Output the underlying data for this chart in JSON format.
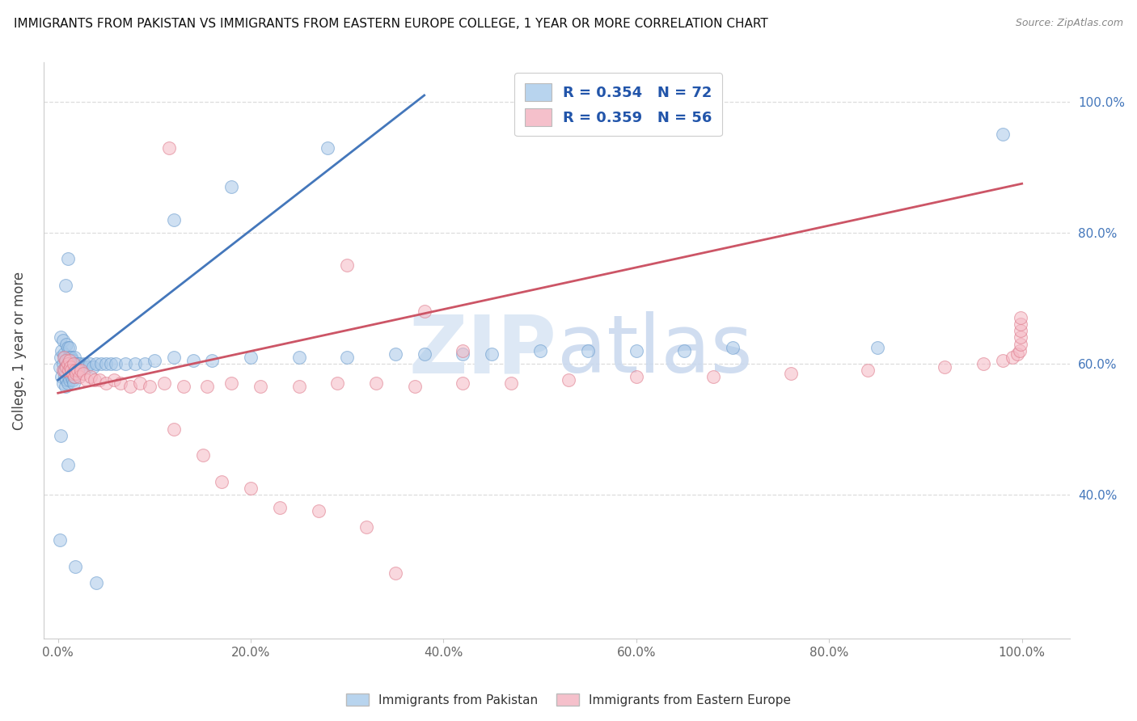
{
  "title": "IMMIGRANTS FROM PAKISTAN VS IMMIGRANTS FROM EASTERN EUROPE COLLEGE, 1 YEAR OR MORE CORRELATION CHART",
  "source": "Source: ZipAtlas.com",
  "ylabel": "College, 1 year or more",
  "blue_color": "#a8c8e8",
  "blue_edge_color": "#6699cc",
  "blue_line_color": "#4477bb",
  "pink_color": "#f5b8c4",
  "pink_edge_color": "#dd7788",
  "pink_line_color": "#cc5566",
  "legend_blue_face": "#b8d4ee",
  "legend_pink_face": "#f5c0cb",
  "watermark_color": "#dde8f5",
  "background_color": "#ffffff",
  "grid_color": "#dddddd",
  "right_tick_color": "#4477bb",
  "blue_label": "R = 0.354   N = 72",
  "pink_label": "R = 0.359   N = 56",
  "blue_line_x": [
    0.0,
    0.38
  ],
  "blue_line_y": [
    0.575,
    1.01
  ],
  "pink_line_x": [
    0.0,
    1.0
  ],
  "pink_line_y": [
    0.555,
    0.875
  ],
  "xlim": [
    -0.015,
    1.05
  ],
  "ylim": [
    0.18,
    1.06
  ],
  "yticks": [
    0.4,
    0.6,
    0.8,
    1.0
  ],
  "ytick_labels_right": [
    "40.0%",
    "60.0%",
    "80.0%",
    "100.0%"
  ],
  "xticks": [
    0.0,
    0.2,
    0.4,
    0.6,
    0.8,
    1.0
  ],
  "xtick_labels": [
    "0.0%",
    "20.0%",
    "40.0%",
    "60.0%",
    "80.0%",
    "100.0%"
  ],
  "blue_x": [
    0.002,
    0.003,
    0.003,
    0.004,
    0.004,
    0.005,
    0.005,
    0.005,
    0.006,
    0.006,
    0.007,
    0.007,
    0.008,
    0.008,
    0.009,
    0.009,
    0.009,
    0.01,
    0.01,
    0.01,
    0.011,
    0.011,
    0.012,
    0.012,
    0.012,
    0.013,
    0.013,
    0.014,
    0.014,
    0.015,
    0.015,
    0.016,
    0.016,
    0.017,
    0.017,
    0.018,
    0.019,
    0.02,
    0.021,
    0.022,
    0.023,
    0.025,
    0.027,
    0.03,
    0.033,
    0.036,
    0.04,
    0.045,
    0.05,
    0.055,
    0.06,
    0.07,
    0.08,
    0.09,
    0.1,
    0.12,
    0.14,
    0.16,
    0.2,
    0.25,
    0.3,
    0.35,
    0.38,
    0.42,
    0.45,
    0.5,
    0.55,
    0.6,
    0.65,
    0.7,
    0.85,
    0.98
  ],
  "blue_y": [
    0.595,
    0.61,
    0.64,
    0.58,
    0.62,
    0.57,
    0.6,
    0.635,
    0.59,
    0.615,
    0.58,
    0.61,
    0.565,
    0.595,
    0.575,
    0.605,
    0.63,
    0.57,
    0.6,
    0.625,
    0.58,
    0.61,
    0.575,
    0.6,
    0.625,
    0.585,
    0.61,
    0.58,
    0.61,
    0.575,
    0.605,
    0.57,
    0.6,
    0.58,
    0.61,
    0.59,
    0.6,
    0.59,
    0.6,
    0.595,
    0.6,
    0.595,
    0.6,
    0.595,
    0.6,
    0.595,
    0.6,
    0.6,
    0.6,
    0.6,
    0.6,
    0.6,
    0.6,
    0.6,
    0.605,
    0.61,
    0.605,
    0.605,
    0.61,
    0.61,
    0.61,
    0.615,
    0.615,
    0.615,
    0.615,
    0.62,
    0.62,
    0.62,
    0.62,
    0.625,
    0.625,
    0.95
  ],
  "blue_y_outliers": [
    0.33,
    0.29,
    0.265,
    0.49,
    0.445,
    0.72,
    0.76,
    0.82,
    0.87,
    0.93
  ],
  "blue_x_outliers": [
    0.002,
    0.018,
    0.04,
    0.003,
    0.01,
    0.008,
    0.01,
    0.12,
    0.18,
    0.28
  ],
  "pink_x": [
    0.005,
    0.006,
    0.007,
    0.008,
    0.009,
    0.01,
    0.011,
    0.012,
    0.013,
    0.014,
    0.015,
    0.016,
    0.017,
    0.018,
    0.019,
    0.02,
    0.022,
    0.024,
    0.026,
    0.03,
    0.034,
    0.038,
    0.043,
    0.05,
    0.058,
    0.065,
    0.075,
    0.085,
    0.095,
    0.11,
    0.13,
    0.155,
    0.18,
    0.21,
    0.25,
    0.29,
    0.33,
    0.37,
    0.42,
    0.47,
    0.53,
    0.6,
    0.68,
    0.76,
    0.84,
    0.92,
    0.96,
    0.98,
    0.99,
    0.995,
    0.998,
    0.999,
    0.999,
    0.999,
    0.999,
    0.999
  ],
  "pink_y": [
    0.59,
    0.61,
    0.59,
    0.605,
    0.595,
    0.6,
    0.59,
    0.605,
    0.595,
    0.59,
    0.585,
    0.6,
    0.58,
    0.59,
    0.585,
    0.59,
    0.58,
    0.59,
    0.585,
    0.575,
    0.58,
    0.575,
    0.575,
    0.57,
    0.575,
    0.57,
    0.565,
    0.57,
    0.565,
    0.57,
    0.565,
    0.565,
    0.57,
    0.565,
    0.565,
    0.57,
    0.57,
    0.565,
    0.57,
    0.57,
    0.575,
    0.58,
    0.58,
    0.585,
    0.59,
    0.595,
    0.6,
    0.605,
    0.61,
    0.615,
    0.62,
    0.63,
    0.64,
    0.65,
    0.66,
    0.67
  ],
  "pink_y_outliers": [
    0.93,
    0.75,
    0.68,
    0.62,
    0.5,
    0.46,
    0.42,
    0.41,
    0.38,
    0.375,
    0.35,
    0.28
  ],
  "pink_x_outliers": [
    0.115,
    0.3,
    0.38,
    0.42,
    0.12,
    0.15,
    0.17,
    0.2,
    0.23,
    0.27,
    0.32,
    0.35
  ]
}
